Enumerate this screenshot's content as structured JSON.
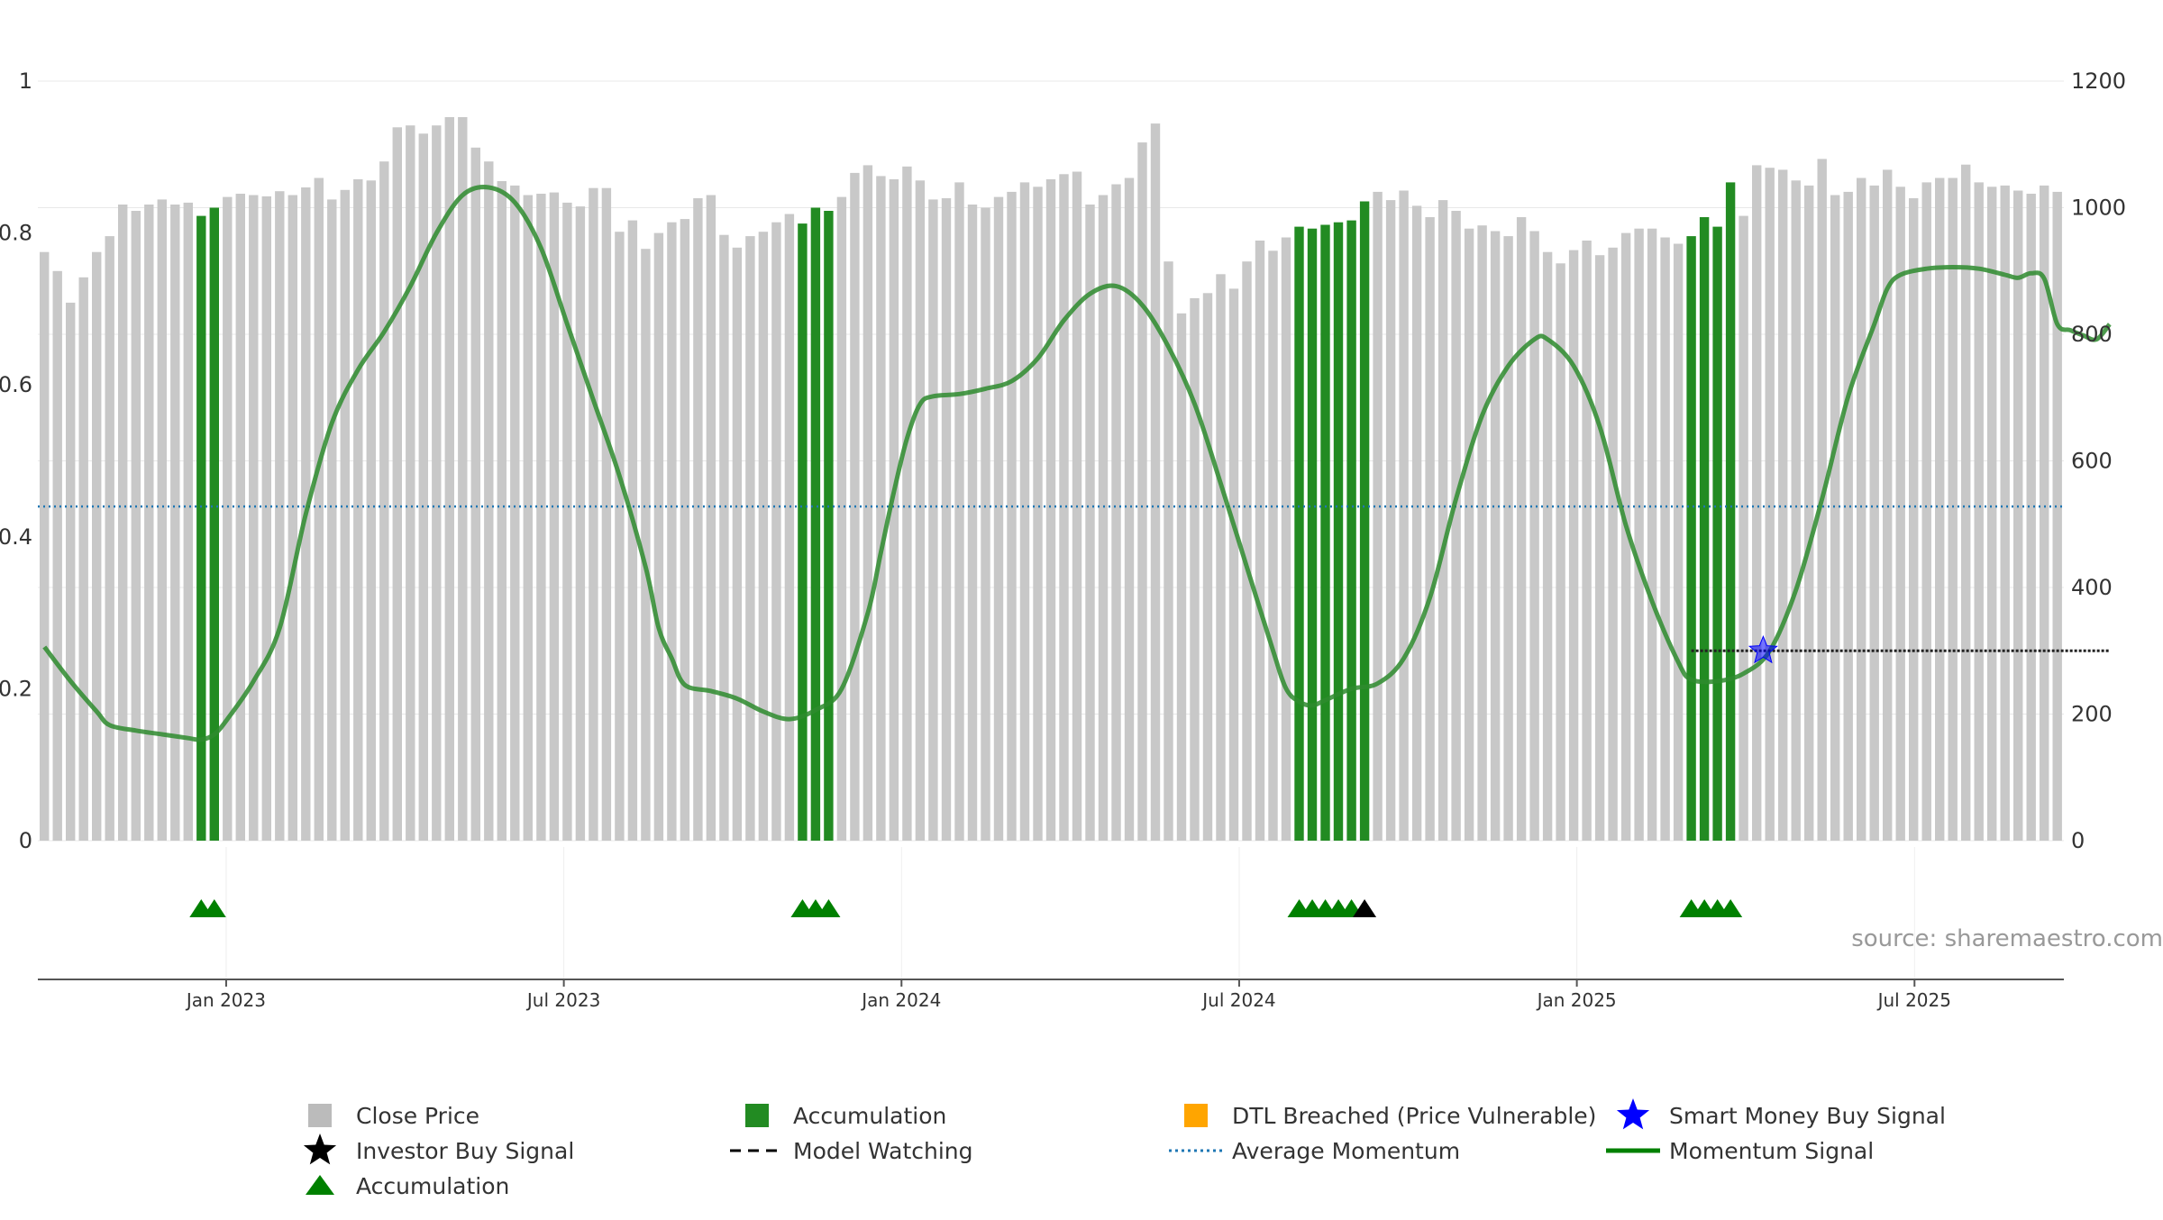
{
  "chart_data": {
    "type": "bar",
    "source_text": "source: sharemaestro.com",
    "left_axis": {
      "min": 0,
      "max": 1,
      "ticks": [
        0,
        0.2,
        0.4,
        0.6,
        0.8,
        1
      ],
      "tick_labels": [
        "0",
        "0.2",
        "0.4",
        "0.6",
        "0.8",
        "1"
      ]
    },
    "right_axis": {
      "min": 0,
      "max": 1200,
      "ticks": [
        0,
        200,
        400,
        600,
        800,
        1000,
        1200
      ],
      "tick_labels": [
        "0",
        "200",
        "400",
        "600",
        "800",
        "1000",
        "1200"
      ]
    },
    "x_axis": {
      "start_index": 0,
      "end_index": 156,
      "ticks": [
        14.5,
        40.5,
        66.5,
        92.5,
        118.5,
        144.5
      ],
      "tick_labels": [
        "Jan 2023",
        "Jul 2023",
        "Jan 2024",
        "Jul 2024",
        "Jan 2025",
        "Jul 2025"
      ]
    },
    "close_price": [
      930,
      900,
      850,
      890,
      930,
      955,
      1005,
      995,
      1005,
      1013,
      1005,
      1008,
      987,
      1000,
      1017,
      1022,
      1020,
      1018,
      1026,
      1020,
      1032,
      1047,
      1013,
      1028,
      1045,
      1043,
      1073,
      1127,
      1130,
      1117,
      1130,
      1143,
      1143,
      1095,
      1073,
      1042,
      1035,
      1020,
      1022,
      1024,
      1008,
      1002,
      1031,
      1031,
      962,
      980,
      935,
      960,
      977,
      982,
      1015,
      1020,
      957,
      937,
      955,
      962,
      977,
      990,
      975,
      1000,
      995,
      1017,
      1055,
      1067,
      1050,
      1045,
      1065,
      1043,
      1013,
      1015,
      1040,
      1005,
      1000,
      1017,
      1025,
      1040,
      1033,
      1045,
      1053,
      1057,
      1005,
      1020,
      1037,
      1047,
      1103,
      1133,
      915,
      833,
      857,
      865,
      895,
      872,
      915,
      948,
      932,
      953,
      970,
      967,
      973,
      977,
      980,
      1010,
      1025,
      1012,
      1027,
      1003,
      985,
      1012,
      995,
      967,
      972,
      963,
      955,
      985,
      963,
      930,
      912,
      933,
      948,
      925,
      937,
      960,
      967,
      967,
      953,
      943,
      955,
      985,
      970,
      1040,
      987,
      1067,
      1063,
      1060,
      1043,
      1035,
      1077,
      1020,
      1025,
      1047,
      1035,
      1060,
      1033,
      1015,
      1040,
      1047,
      1047,
      1068,
      1040,
      1033,
      1035,
      1027,
      1022,
      1035,
      1025
    ],
    "accumulation_bars": [
      12,
      13,
      58,
      59,
      60,
      96,
      97,
      98,
      99,
      100,
      101,
      126,
      127,
      128,
      129
    ],
    "momentum_signal": [
      [
        0,
        0.255
      ],
      [
        2,
        0.21
      ],
      [
        4,
        0.17
      ],
      [
        5,
        0.152
      ],
      [
        7,
        0.145
      ],
      [
        9,
        0.14
      ],
      [
        11,
        0.135
      ],
      [
        12,
        0.133
      ],
      [
        13,
        0.14
      ],
      [
        14,
        0.16
      ],
      [
        16,
        0.21
      ],
      [
        18,
        0.28
      ],
      [
        20,
        0.43
      ],
      [
        22,
        0.55
      ],
      [
        24,
        0.62
      ],
      [
        26,
        0.67
      ],
      [
        28,
        0.73
      ],
      [
        30,
        0.8
      ],
      [
        32,
        0.85
      ],
      [
        34,
        0.86
      ],
      [
        36,
        0.84
      ],
      [
        38,
        0.78
      ],
      [
        40,
        0.68
      ],
      [
        42,
        0.58
      ],
      [
        44,
        0.48
      ],
      [
        46,
        0.36
      ],
      [
        47,
        0.28
      ],
      [
        48,
        0.24
      ],
      [
        49,
        0.205
      ],
      [
        51,
        0.197
      ],
      [
        53,
        0.187
      ],
      [
        55,
        0.17
      ],
      [
        57,
        0.16
      ],
      [
        59,
        0.172
      ],
      [
        61,
        0.2
      ],
      [
        63,
        0.3
      ],
      [
        64,
        0.38
      ],
      [
        65,
        0.46
      ],
      [
        66,
        0.53
      ],
      [
        67,
        0.575
      ],
      [
        68,
        0.585
      ],
      [
        70,
        0.588
      ],
      [
        72,
        0.595
      ],
      [
        74,
        0.605
      ],
      [
        76,
        0.635
      ],
      [
        78,
        0.685
      ],
      [
        80,
        0.72
      ],
      [
        82,
        0.73
      ],
      [
        84,
        0.705
      ],
      [
        86,
        0.65
      ],
      [
        88,
        0.575
      ],
      [
        90,
        0.47
      ],
      [
        92,
        0.36
      ],
      [
        94,
        0.25
      ],
      [
        95,
        0.2
      ],
      [
        96,
        0.183
      ],
      [
        97,
        0.178
      ],
      [
        98,
        0.185
      ],
      [
        100,
        0.2
      ],
      [
        102,
        0.207
      ],
      [
        104,
        0.24
      ],
      [
        106,
        0.32
      ],
      [
        108,
        0.45
      ],
      [
        110,
        0.56
      ],
      [
        112,
        0.625
      ],
      [
        114,
        0.66
      ],
      [
        115,
        0.66
      ],
      [
        117,
        0.625
      ],
      [
        119,
        0.545
      ],
      [
        121,
        0.415
      ],
      [
        123,
        0.315
      ],
      [
        125,
        0.235
      ],
      [
        126,
        0.212
      ],
      [
        128,
        0.21
      ],
      [
        130,
        0.22
      ],
      [
        132,
        0.25
      ],
      [
        134,
        0.33
      ],
      [
        136,
        0.45
      ],
      [
        138,
        0.585
      ],
      [
        140,
        0.68
      ],
      [
        141,
        0.727
      ],
      [
        142,
        0.745
      ],
      [
        144,
        0.753
      ],
      [
        146,
        0.755
      ],
      [
        148,
        0.753
      ],
      [
        150,
        0.745
      ],
      [
        151,
        0.741
      ],
      [
        152,
        0.747
      ],
      [
        153,
        0.74
      ],
      [
        154,
        0.68
      ],
      [
        155,
        0.672
      ],
      [
        156,
        0.665
      ],
      [
        157,
        0.66
      ],
      [
        158,
        0.68
      ]
    ],
    "average_momentum": 0.44,
    "model_watching": {
      "start": 126,
      "end": 158,
      "value": 0.25
    },
    "smart_money_buy": [
      {
        "x": 131.5,
        "y": 0.25
      }
    ],
    "triangle_markers": {
      "accumulation": [
        12,
        13,
        58,
        59,
        60,
        96,
        97,
        98,
        99,
        100,
        126,
        127,
        128,
        129
      ],
      "investor_buy": [
        101
      ]
    },
    "legend": [
      {
        "label": "Close Price",
        "symbol": "square",
        "color": "#bbbbbb"
      },
      {
        "label": "Accumulation",
        "symbol": "square",
        "color": "#228b22"
      },
      {
        "label": "DTL Breached (Price Vulnerable)",
        "symbol": "square",
        "color": "#ffa500"
      },
      {
        "label": "Smart Money Buy Signal",
        "symbol": "star",
        "color": "#0000ff"
      },
      {
        "label": "Investor Buy Signal",
        "symbol": "star",
        "color": "#000000"
      },
      {
        "label": "Model Watching",
        "symbol": "dash",
        "color": "#000000"
      },
      {
        "label": "Average Momentum",
        "symbol": "dot",
        "color": "#1f77b4"
      },
      {
        "label": "Momentum Signal",
        "symbol": "line",
        "color": "#008000"
      },
      {
        "label": "Accumulation",
        "symbol": "triangle",
        "color": "#008000"
      }
    ],
    "colors": {
      "price": "#c8c8c8",
      "accumulation": "#228b22",
      "momentum": "#2e8b2e",
      "average": "#1f77b4",
      "investor": "#000000",
      "smart_money": "#0000ff",
      "axis": "#555555",
      "text": "#333333",
      "grid": "#e8e8e8",
      "source": "#999999"
    }
  }
}
